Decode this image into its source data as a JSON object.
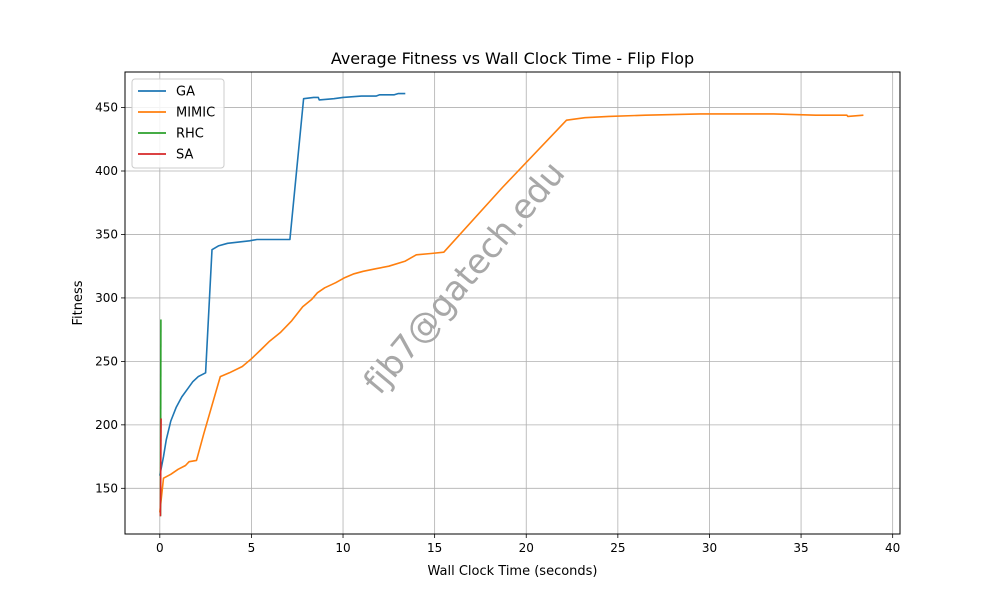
{
  "chart_data": {
    "type": "line",
    "title": "Average Fitness vs Wall Clock Time - Flip Flop",
    "xlabel": "Wall Clock Time (seconds)",
    "ylabel": "Fitness",
    "xlim": [
      -1.9,
      40.4
    ],
    "ylim": [
      114,
      478
    ],
    "xticks": [
      0,
      5,
      10,
      15,
      20,
      25,
      30,
      35,
      40
    ],
    "yticks": [
      150,
      200,
      250,
      300,
      350,
      400,
      450
    ],
    "grid": true,
    "legend_position": "top-left",
    "watermark": "fjb7@gatech.edu",
    "series": [
      {
        "name": "GA",
        "color": "#1f77b4",
        "points": [
          [
            0.0,
            160
          ],
          [
            0.2,
            175
          ],
          [
            0.35,
            188
          ],
          [
            0.6,
            203
          ],
          [
            0.9,
            214
          ],
          [
            1.2,
            222
          ],
          [
            1.5,
            228
          ],
          [
            1.8,
            234
          ],
          [
            2.1,
            238
          ],
          [
            2.5,
            241
          ],
          [
            2.85,
            338
          ],
          [
            3.2,
            341
          ],
          [
            3.7,
            343
          ],
          [
            4.3,
            344
          ],
          [
            4.9,
            345
          ],
          [
            5.3,
            346
          ],
          [
            5.9,
            346
          ],
          [
            6.2,
            346
          ],
          [
            7.1,
            346
          ],
          [
            7.85,
            457
          ],
          [
            8.4,
            458
          ],
          [
            8.65,
            458
          ],
          [
            8.7,
            456
          ],
          [
            9.5,
            457
          ],
          [
            10.0,
            458
          ],
          [
            11.0,
            459
          ],
          [
            11.8,
            459
          ],
          [
            12.0,
            460
          ],
          [
            12.8,
            460
          ],
          [
            13.0,
            461
          ],
          [
            13.4,
            461
          ]
        ]
      },
      {
        "name": "MIMIC",
        "color": "#ff7f0e",
        "points": [
          [
            0.0,
            131
          ],
          [
            0.2,
            158
          ],
          [
            0.6,
            161
          ],
          [
            1.0,
            165
          ],
          [
            1.4,
            168
          ],
          [
            1.6,
            171
          ],
          [
            2.0,
            172
          ],
          [
            2.4,
            193
          ],
          [
            3.3,
            238
          ],
          [
            3.8,
            241
          ],
          [
            4.5,
            246
          ],
          [
            5.0,
            252
          ],
          [
            5.5,
            259
          ],
          [
            6.0,
            266
          ],
          [
            6.6,
            273
          ],
          [
            7.2,
            282
          ],
          [
            7.8,
            293
          ],
          [
            8.3,
            299
          ],
          [
            8.6,
            304
          ],
          [
            9.0,
            308
          ],
          [
            9.6,
            312
          ],
          [
            10.1,
            316
          ],
          [
            10.6,
            319
          ],
          [
            11.1,
            321
          ],
          [
            11.8,
            323
          ],
          [
            12.5,
            325
          ],
          [
            13.4,
            329
          ],
          [
            14.0,
            334
          ],
          [
            14.8,
            335
          ],
          [
            15.5,
            336
          ],
          [
            18.7,
            387
          ],
          [
            22.2,
            440
          ],
          [
            23.2,
            442
          ],
          [
            24.5,
            443
          ],
          [
            26.5,
            444
          ],
          [
            29.5,
            445
          ],
          [
            33.5,
            445
          ],
          [
            35.8,
            444
          ],
          [
            37.5,
            444
          ],
          [
            37.55,
            443
          ],
          [
            38.4,
            444
          ]
        ]
      },
      {
        "name": "RHC",
        "color": "#2ca02c",
        "points": [
          [
            0.04,
            128
          ],
          [
            0.06,
            283
          ]
        ]
      },
      {
        "name": "SA",
        "color": "#d62728",
        "points": [
          [
            0.03,
            128
          ],
          [
            0.07,
            205
          ]
        ]
      }
    ]
  }
}
